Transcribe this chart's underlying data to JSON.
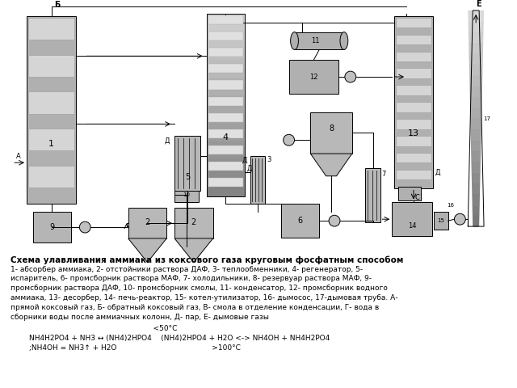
{
  "title": "Схема улавливания аммиака из коксового газа круговым фосфатным способом",
  "desc_lines": [
    "1- абсорбер аммиака, 2- отстойники раствора ДАФ, 3- теплообменники, 4- регенератор, 5-",
    "испаритель, 6- промсборник раствора МАФ, 7- холодильники, 8- резервуар раствора МАФ, 9-",
    "промсборник раствора ДАФ, 10- промсборник смолы, 11- конденсатор, 12- промсборник водного",
    "аммиака, 13- десорбер, 14- печь-реактор, 15- котел-утилизатор, 16- дымосос, 17-дымовая труба. А-",
    "прямой коксовый газ, Б- обратный коксовый газ, В- смола в отделение конденсации, Г- вода в",
    "сборники воды после аммиачных колонн, Д- пар, Е- дымовые газы"
  ],
  "chem1": "                    <50°C",
  "chem2": "        NH4H2PO4 + NH3 ↔ (NH4)2HPO4    (NH4)2HPO4 + H2O <-> NH4OH + NH4H2PO4",
  "chem3": "        ;NH4OH = NH3↑ + H2O                                         >100°C",
  "bg": "#ffffff",
  "lc": "#000000"
}
